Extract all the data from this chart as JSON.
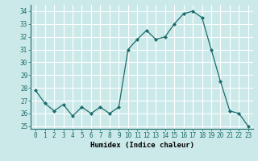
{
  "x": [
    0,
    1,
    2,
    3,
    4,
    5,
    6,
    7,
    8,
    9,
    10,
    11,
    12,
    13,
    14,
    15,
    16,
    17,
    18,
    19,
    20,
    21,
    22,
    23
  ],
  "y": [
    27.8,
    26.8,
    26.2,
    26.7,
    25.8,
    26.5,
    26.0,
    26.5,
    26.0,
    26.5,
    31.0,
    31.8,
    32.5,
    31.8,
    32.0,
    33.0,
    33.8,
    34.0,
    33.5,
    31.0,
    28.5,
    26.2,
    26.0,
    25.0
  ],
  "line_color": "#1a6b6b",
  "marker": "D",
  "marker_size": 2.0,
  "bg_color": "#cce9e9",
  "grid_color": "#ffffff",
  "xlabel": "Humidex (Indice chaleur)",
  "xlim": [
    -0.5,
    23.5
  ],
  "ylim": [
    24.8,
    34.5
  ],
  "yticks": [
    25,
    26,
    27,
    28,
    29,
    30,
    31,
    32,
    33,
    34
  ],
  "xticks": [
    0,
    1,
    2,
    3,
    4,
    5,
    6,
    7,
    8,
    9,
    10,
    11,
    12,
    13,
    14,
    15,
    16,
    17,
    18,
    19,
    20,
    21,
    22,
    23
  ],
  "tick_fontsize": 5.5,
  "xlabel_fontsize": 6.5,
  "linewidth": 0.9
}
